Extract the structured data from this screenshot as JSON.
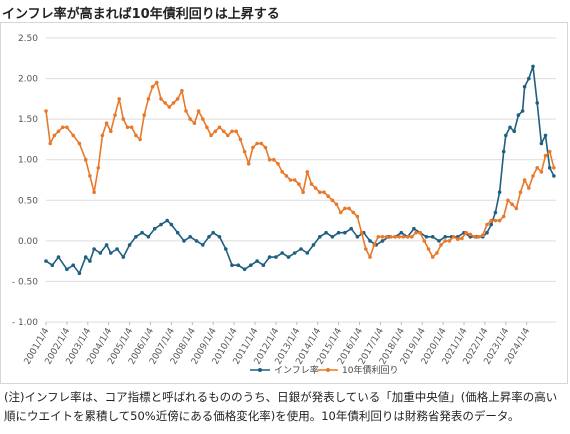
{
  "title": "インフレ率が高まれば10年債利回りは上昇する",
  "note": "(注)インフレ率は、コア指標と呼ばれるもののうち、日銀が発表している「加重中央値」(価格上昇率の高い順にウエイトを累積して50%近傍にある価格変化率)を使用。10年債利回りは財務省発表のデータ。",
  "chart_data": {
    "type": "line",
    "ylim": [
      -1.0,
      2.5
    ],
    "yticks": [
      "2.50",
      "2.00",
      "1.50",
      "1.00",
      "0.50",
      "0.00",
      "- 0.50",
      "- 1.00"
    ],
    "ytick_values": [
      2.5,
      2.0,
      1.5,
      1.0,
      0.5,
      0.0,
      -0.5,
      -1.0
    ],
    "xlim": [
      2001.0,
      2025.4
    ],
    "xticks": [
      "2001/1/4",
      "2002/1/4",
      "2003/1/4",
      "2004/1/4",
      "2005/1/4",
      "2006/1/4",
      "2007/1/4",
      "2008/1/4",
      "2009/1/4",
      "2010/1/4",
      "2011/1/4",
      "2012/1/4",
      "2013/1/4",
      "2014/1/4",
      "2015/1/4",
      "2016/1/4",
      "2017/1/4",
      "2018/1/4",
      "2019/1/4",
      "2020/1/4",
      "2021/1/4",
      "2022/1/4",
      "2023/1/4",
      "2024/1/4"
    ],
    "grid": true,
    "legend_position": "bottom",
    "series": [
      {
        "name": "インフレ率",
        "color": "#1f5f7f",
        "x": [
          2001.0,
          2001.3,
          2001.6,
          2002.0,
          2002.3,
          2002.6,
          2002.9,
          2003.1,
          2003.3,
          2003.6,
          2003.9,
          2004.1,
          2004.4,
          2004.7,
          2005.0,
          2005.3,
          2005.6,
          2005.9,
          2006.2,
          2006.5,
          2006.8,
          2007.0,
          2007.3,
          2007.6,
          2007.9,
          2008.2,
          2008.5,
          2008.8,
          2009.0,
          2009.3,
          2009.6,
          2009.9,
          2010.2,
          2010.5,
          2010.8,
          2011.1,
          2011.4,
          2011.7,
          2012.0,
          2012.3,
          2012.6,
          2012.9,
          2013.2,
          2013.5,
          2013.8,
          2014.1,
          2014.4,
          2014.7,
          2015.0,
          2015.3,
          2015.6,
          2015.9,
          2016.2,
          2016.5,
          2016.8,
          2017.1,
          2017.4,
          2017.7,
          2018.0,
          2018.3,
          2018.6,
          2018.9,
          2019.2,
          2019.5,
          2019.8,
          2020.1,
          2020.4,
          2020.7,
          2021.0,
          2021.3,
          2021.6,
          2021.9,
          2022.1,
          2022.3,
          2022.5,
          2022.7,
          2022.9,
          2023.0,
          2023.2,
          2023.4,
          2023.6,
          2023.8,
          2023.9,
          2024.1,
          2024.3,
          2024.5,
          2024.7,
          2024.9,
          2025.1,
          2025.3
        ],
        "y": [
          -0.25,
          -0.3,
          -0.2,
          -0.35,
          -0.3,
          -0.4,
          -0.2,
          -0.25,
          -0.1,
          -0.15,
          -0.05,
          -0.15,
          -0.1,
          -0.2,
          -0.05,
          0.05,
          0.1,
          0.05,
          0.15,
          0.2,
          0.25,
          0.2,
          0.1,
          0.0,
          0.05,
          0.0,
          -0.05,
          0.05,
          0.1,
          0.05,
          -0.1,
          -0.3,
          -0.3,
          -0.35,
          -0.3,
          -0.25,
          -0.3,
          -0.2,
          -0.2,
          -0.15,
          -0.2,
          -0.15,
          -0.1,
          -0.15,
          -0.05,
          0.05,
          0.1,
          0.05,
          0.1,
          0.1,
          0.15,
          0.05,
          0.1,
          0.0,
          -0.05,
          0.0,
          0.05,
          0.05,
          0.1,
          0.05,
          0.15,
          0.1,
          0.05,
          0.05,
          0.0,
          0.05,
          0.05,
          0.05,
          0.1,
          0.05,
          0.05,
          0.05,
          0.1,
          0.2,
          0.35,
          0.6,
          1.1,
          1.3,
          1.4,
          1.35,
          1.55,
          1.6,
          1.9,
          2.0,
          2.15,
          1.7,
          1.2,
          1.3,
          0.9,
          0.8
        ]
      },
      {
        "name": "10年債利回り",
        "color": "#e8792a",
        "x": [
          2001.0,
          2001.2,
          2001.4,
          2001.6,
          2001.8,
          2002.0,
          2002.3,
          2002.6,
          2002.9,
          2003.1,
          2003.3,
          2003.5,
          2003.7,
          2003.9,
          2004.1,
          2004.3,
          2004.5,
          2004.7,
          2004.9,
          2005.1,
          2005.3,
          2005.5,
          2005.7,
          2005.9,
          2006.1,
          2006.3,
          2006.5,
          2006.7,
          2006.9,
          2007.1,
          2007.3,
          2007.5,
          2007.7,
          2007.9,
          2008.1,
          2008.3,
          2008.5,
          2008.7,
          2008.9,
          2009.1,
          2009.3,
          2009.5,
          2009.7,
          2009.9,
          2010.1,
          2010.3,
          2010.5,
          2010.7,
          2010.9,
          2011.1,
          2011.3,
          2011.5,
          2011.7,
          2011.9,
          2012.1,
          2012.3,
          2012.5,
          2012.7,
          2012.9,
          2013.1,
          2013.3,
          2013.5,
          2013.7,
          2013.9,
          2014.1,
          2014.3,
          2014.5,
          2014.7,
          2014.9,
          2015.1,
          2015.3,
          2015.5,
          2015.7,
          2015.9,
          2016.1,
          2016.3,
          2016.5,
          2016.7,
          2016.9,
          2017.1,
          2017.3,
          2017.5,
          2017.7,
          2017.9,
          2018.1,
          2018.3,
          2018.5,
          2018.7,
          2018.9,
          2019.1,
          2019.3,
          2019.5,
          2019.7,
          2019.9,
          2020.1,
          2020.3,
          2020.5,
          2020.7,
          2020.9,
          2021.1,
          2021.3,
          2021.5,
          2021.7,
          2021.9,
          2022.1,
          2022.3,
          2022.5,
          2022.7,
          2022.9,
          2023.1,
          2023.3,
          2023.5,
          2023.7,
          2023.9,
          2024.1,
          2024.3,
          2024.5,
          2024.7,
          2024.9,
          2025.1,
          2025.3
        ],
        "y": [
          1.6,
          1.2,
          1.3,
          1.35,
          1.4,
          1.4,
          1.3,
          1.2,
          1.0,
          0.8,
          0.6,
          0.9,
          1.3,
          1.45,
          1.35,
          1.55,
          1.75,
          1.5,
          1.4,
          1.4,
          1.3,
          1.25,
          1.55,
          1.75,
          1.9,
          1.95,
          1.75,
          1.7,
          1.65,
          1.7,
          1.75,
          1.85,
          1.6,
          1.5,
          1.45,
          1.6,
          1.5,
          1.4,
          1.3,
          1.35,
          1.4,
          1.35,
          1.3,
          1.35,
          1.35,
          1.25,
          1.1,
          0.95,
          1.15,
          1.2,
          1.2,
          1.15,
          1.0,
          1.0,
          0.95,
          0.85,
          0.8,
          0.75,
          0.75,
          0.7,
          0.6,
          0.85,
          0.7,
          0.65,
          0.6,
          0.6,
          0.55,
          0.5,
          0.45,
          0.35,
          0.4,
          0.4,
          0.35,
          0.3,
          0.1,
          -0.1,
          -0.2,
          -0.05,
          0.05,
          0.05,
          0.05,
          0.05,
          0.05,
          0.05,
          0.05,
          0.05,
          0.05,
          0.1,
          0.1,
          0.0,
          -0.1,
          -0.2,
          -0.15,
          -0.05,
          0.0,
          0.0,
          0.05,
          0.02,
          0.03,
          0.1,
          0.08,
          0.05,
          0.05,
          0.07,
          0.2,
          0.25,
          0.25,
          0.25,
          0.3,
          0.5,
          0.45,
          0.4,
          0.6,
          0.75,
          0.65,
          0.8,
          0.9,
          0.85,
          1.05,
          1.1,
          0.9
        ]
      }
    ]
  }
}
